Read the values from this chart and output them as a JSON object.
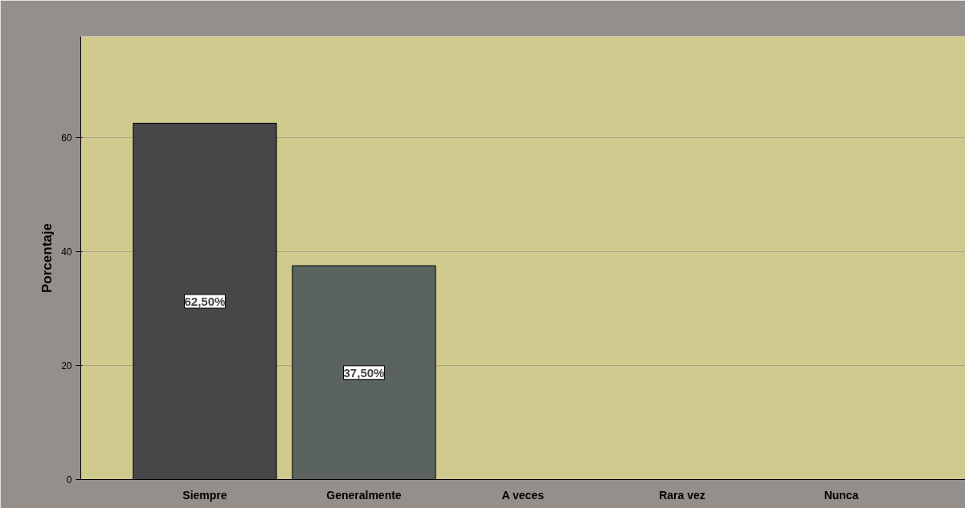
{
  "chart_data": {
    "type": "bar",
    "ylabel": "Porcentaje",
    "categories": [
      "Siempre",
      "Generalmente",
      "A veces",
      "Rara vez",
      "Nunca"
    ],
    "values": [
      62.5,
      37.5,
      0,
      0,
      0
    ],
    "value_labels": [
      "62,50%",
      "37,50%",
      null,
      null,
      null
    ],
    "colors": [
      "#454749",
      "#5a635d",
      "#5a635d",
      "#5a635d",
      "#5a635d"
    ],
    "ylim": [
      0,
      77.7
    ],
    "yticks": [
      0,
      20,
      40,
      60
    ],
    "grid": "y"
  }
}
